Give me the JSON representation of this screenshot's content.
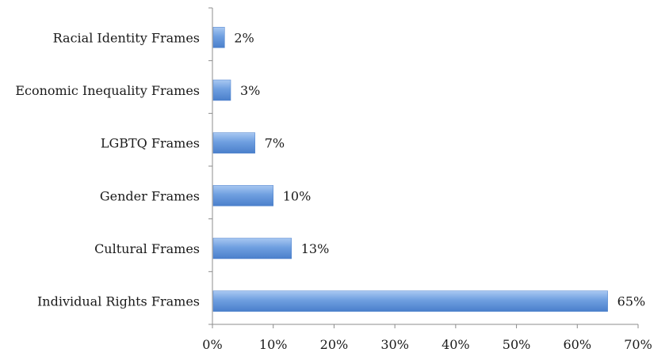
{
  "chart_data": {
    "type": "bar",
    "orientation": "horizontal",
    "title": "",
    "xlabel": "",
    "ylabel": "",
    "categories": [
      "Racial Identity Frames",
      "Economic Inequality Frames",
      "LGBTQ Frames",
      "Gender Frames",
      "Cultural Frames",
      "Individual Rights Frames"
    ],
    "values": [
      2,
      3,
      7,
      10,
      13,
      65
    ],
    "value_labels": [
      "2%",
      "3%",
      "7%",
      "10%",
      "13%",
      "65%"
    ],
    "xlim": [
      0,
      70
    ],
    "x_ticks": [
      0,
      10,
      20,
      30,
      40,
      50,
      60,
      70
    ],
    "x_tick_labels": [
      "0%",
      "10%",
      "20%",
      "30%",
      "40%",
      "50%",
      "60%",
      "70%"
    ],
    "grid": false,
    "legend": "none",
    "colors": {
      "bar_light": "#a9c8f2",
      "bar_mid": "#6f9fe0",
      "bar_dark": "#4a7fcb",
      "axis": "#8c8c8c",
      "text": "#1a1a1a"
    }
  }
}
